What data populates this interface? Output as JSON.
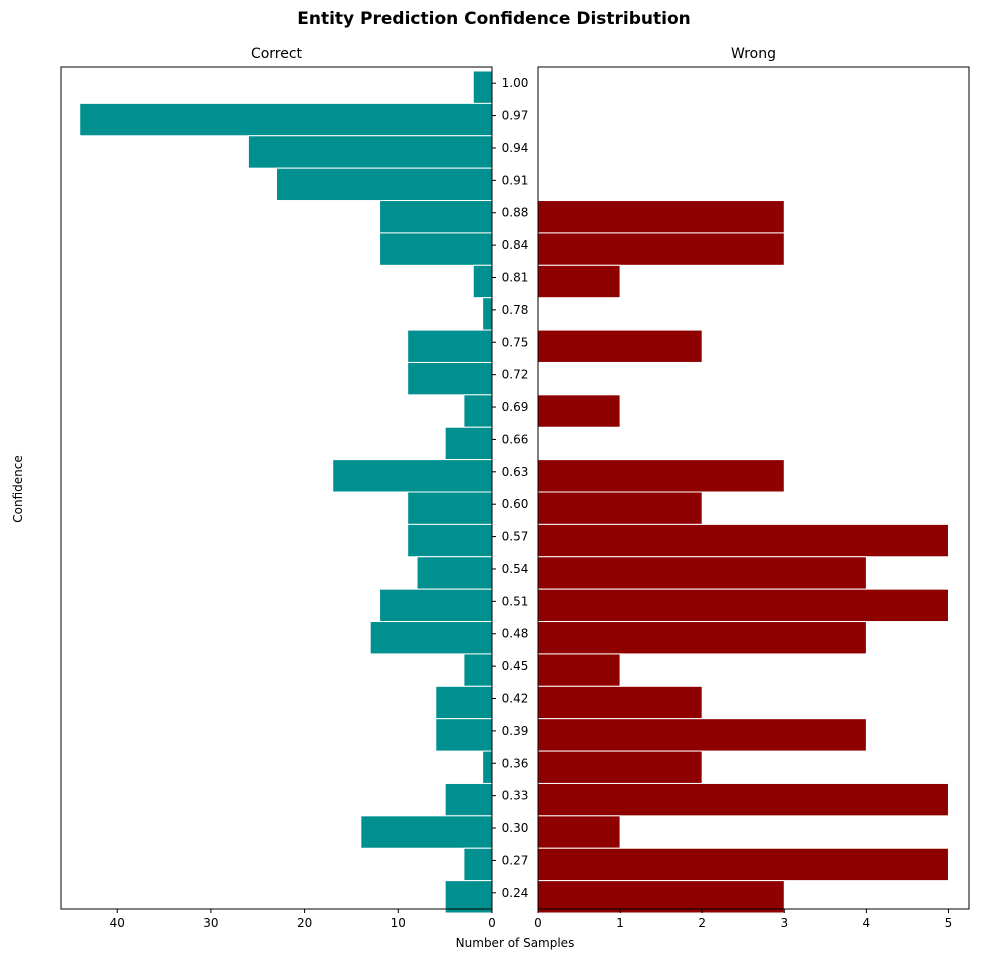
{
  "chart_data": {
    "type": "bar",
    "orientation": "horizontal",
    "title": "Entity Prediction Confidence Distribution",
    "ylabel": "Confidence",
    "xlabel": "Number of Samples",
    "colors": {
      "correct": "#009090",
      "wrong": "#8f0000",
      "bar_edge": "#ffffff"
    },
    "categories": [
      "1.00",
      "0.97",
      "0.94",
      "0.91",
      "0.88",
      "0.84",
      "0.81",
      "0.78",
      "0.75",
      "0.72",
      "0.69",
      "0.66",
      "0.63",
      "0.60",
      "0.57",
      "0.54",
      "0.51",
      "0.48",
      "0.45",
      "0.42",
      "0.39",
      "0.36",
      "0.33",
      "0.30",
      "0.27",
      "0.24"
    ],
    "panels": [
      {
        "key": "correct",
        "subtitle": "Correct",
        "x_inverted": true,
        "xlim": [
          0,
          46
        ],
        "xticks": [
          0,
          10,
          20,
          30,
          40
        ],
        "values": [
          2,
          44,
          26,
          23,
          12,
          12,
          2,
          1,
          9,
          9,
          3,
          5,
          17,
          9,
          9,
          8,
          12,
          13,
          3,
          6,
          6,
          1,
          5,
          14,
          3,
          5
        ]
      },
      {
        "key": "wrong",
        "subtitle": "Wrong",
        "x_inverted": false,
        "xlim": [
          0,
          5.25
        ],
        "xticks": [
          0,
          1,
          2,
          3,
          4,
          5
        ],
        "values": [
          0,
          0,
          0,
          0,
          3,
          3,
          1,
          0,
          2,
          0,
          1,
          0,
          3,
          2,
          5,
          4,
          5,
          4,
          1,
          2,
          4,
          2,
          5,
          1,
          5,
          3
        ]
      }
    ]
  }
}
